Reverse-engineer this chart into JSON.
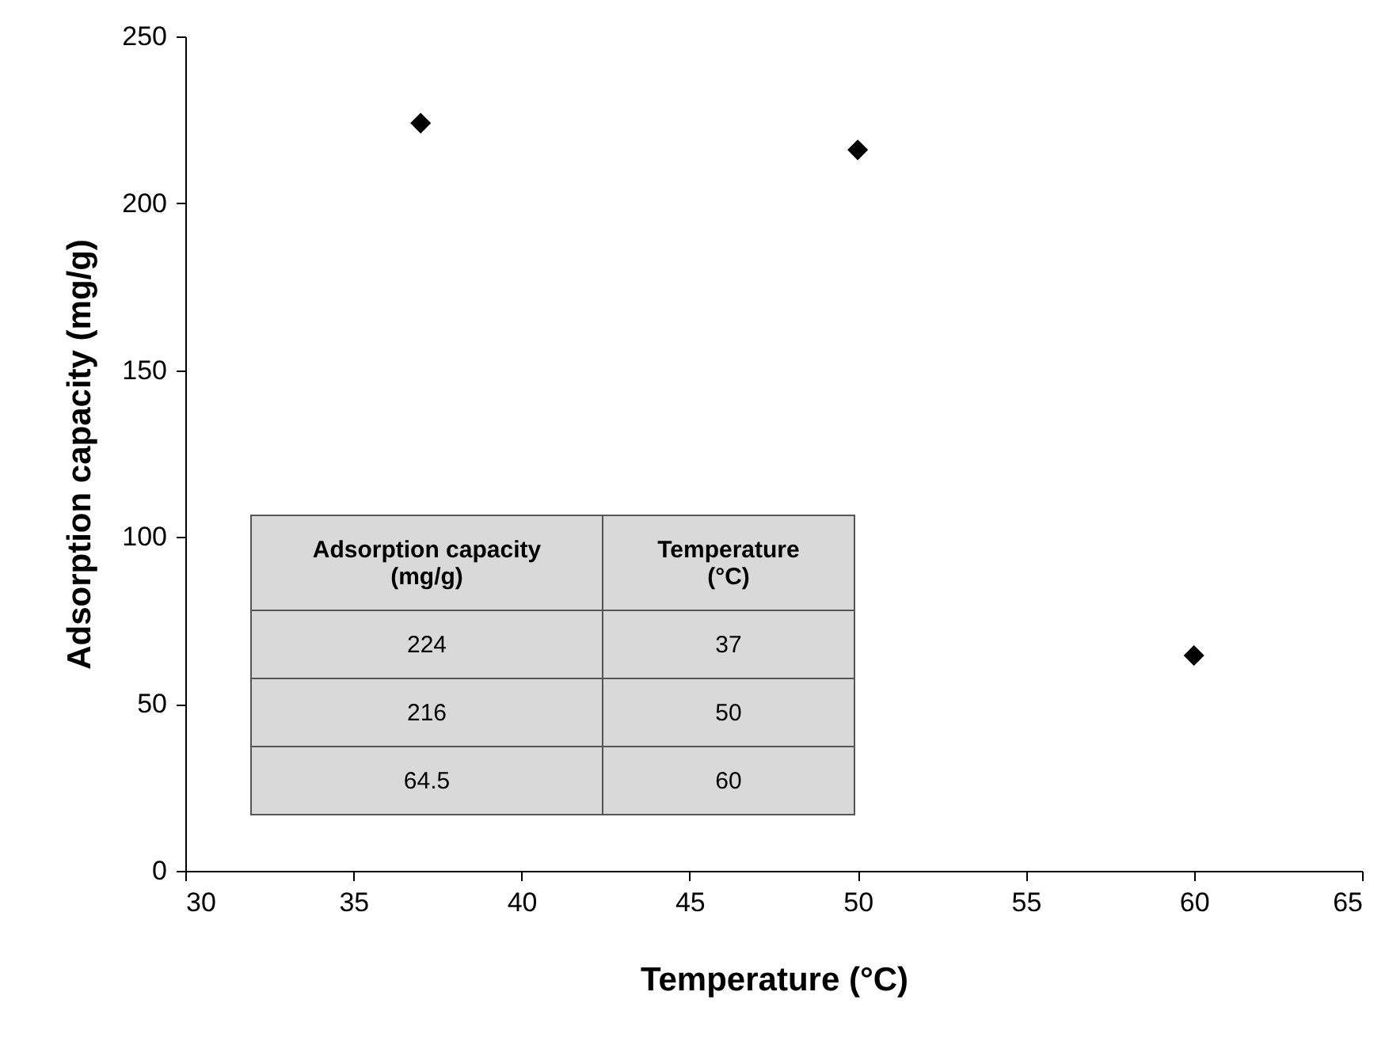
{
  "chart_data": {
    "type": "scatter",
    "xlabel": "Temperature (°C)",
    "ylabel": "Adsorption capacity (mg/g)",
    "x": [
      37,
      50,
      60
    ],
    "series": [
      {
        "color": "#000000",
        "values": [
          224,
          216,
          64.5
        ]
      }
    ],
    "xlim": [
      30,
      65
    ],
    "xticks": [
      30,
      35,
      40,
      45,
      50,
      55,
      60,
      65
    ],
    "ylim": [
      0,
      250
    ],
    "yticks": [
      0,
      50,
      100,
      150,
      200,
      250
    ],
    "grid": false,
    "marker": "diamond",
    "annotations": [
      "Adsorption capacity (mg/g)",
      "Temperature (°C)",
      "224",
      "37",
      "216",
      "50",
      "64.5",
      "60"
    ]
  }
}
